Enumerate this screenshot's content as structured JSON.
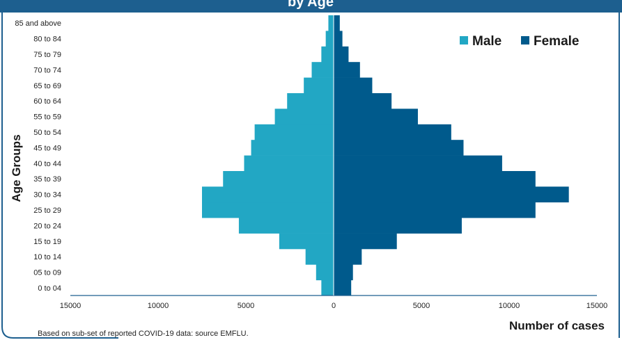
{
  "title": "by Age",
  "footnote": "Based on sub-set of reported COVID-19 data: source EMFLU.",
  "colors": {
    "male": "#22a7c4",
    "female": "#005a8c",
    "frame": "#1d5f8f"
  },
  "chart_data": {
    "type": "bar",
    "orientation": "horizontal-pyramid",
    "categories": [
      "0 to 04",
      "05 to 09",
      "10 to 14",
      "15 to 19",
      "20 to 24",
      "25 to 29",
      "30 to 34",
      "35 to 39",
      "40 to 44",
      "45 to 49",
      "50 to 54",
      "55 to 59",
      "60 to 64",
      "65 to 69",
      "70 to 74",
      "75 to 79",
      "80 to 84",
      "85 and above"
    ],
    "series": [
      {
        "name": "Male",
        "values": [
          700,
          1000,
          1600,
          3100,
          5400,
          7500,
          7500,
          6300,
          5100,
          4700,
          4500,
          3350,
          2650,
          1700,
          1250,
          700,
          450,
          300
        ]
      },
      {
        "name": "Female",
        "values": [
          1000,
          1100,
          1600,
          3600,
          7300,
          11500,
          13400,
          11500,
          9600,
          7400,
          6700,
          4800,
          3300,
          2200,
          1500,
          850,
          500,
          350
        ]
      }
    ],
    "xticks": [
      "15000",
      "10000",
      "5000",
      "0",
      "5000",
      "10000",
      "15000"
    ],
    "xlim": [
      -15000,
      15000
    ],
    "xlabel": "Number of cases",
    "ylabel": "Age Groups",
    "legend": "top-right",
    "grid": false
  }
}
